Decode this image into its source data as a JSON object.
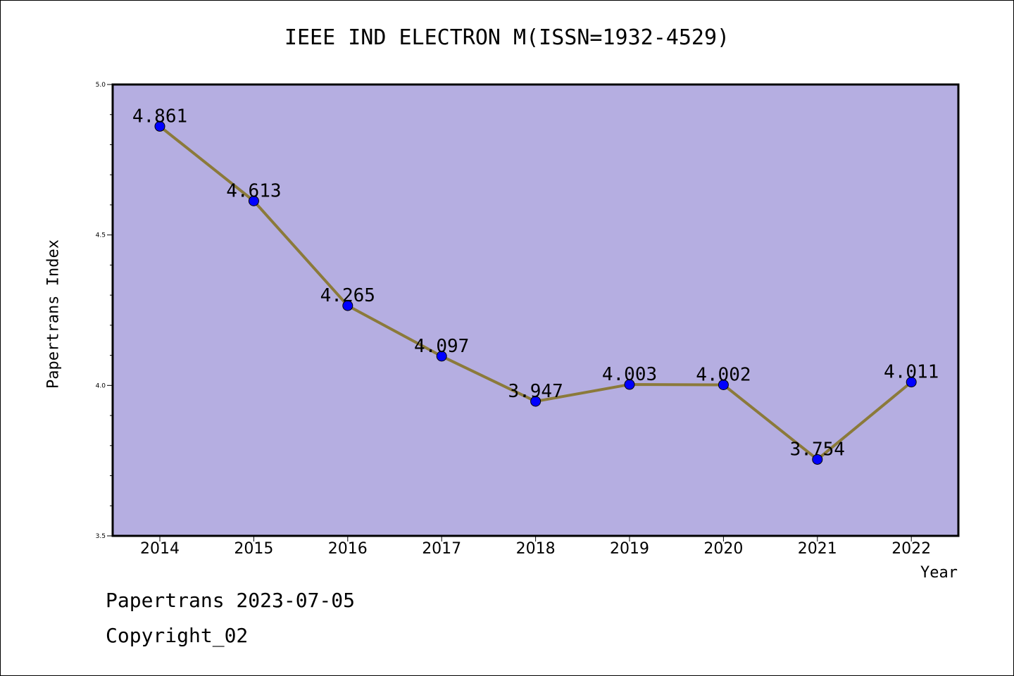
{
  "chart_data": {
    "type": "line",
    "title": "IEEE IND ELECTRON M(ISSN=1932-4529)",
    "xlabel": "Year",
    "ylabel": "Papertrans Index",
    "categories": [
      "2014",
      "2015",
      "2016",
      "2017",
      "2018",
      "2019",
      "2020",
      "2021",
      "2022"
    ],
    "series": [
      {
        "values": [
          4.861,
          4.613,
          4.265,
          4.097,
          3.947,
          4.003,
          4.002,
          3.754,
          4.011
        ],
        "labels": [
          "4.861",
          "4.613",
          "4.265",
          "4.097",
          "3.947",
          "4.003",
          "4.002",
          "3.754",
          "4.011"
        ]
      }
    ],
    "ylim": [
      3.5,
      5.0
    ],
    "yticks": [
      "3.5",
      "4.0",
      "4.5",
      "5.0"
    ],
    "grid": false,
    "colors": {
      "plot_background": "#b5aee1",
      "line": "#8b7a3a",
      "marker": "#0000ff"
    }
  },
  "footer": {
    "line1": "Papertrans 2023-07-05",
    "line2": "Copyright_02"
  }
}
